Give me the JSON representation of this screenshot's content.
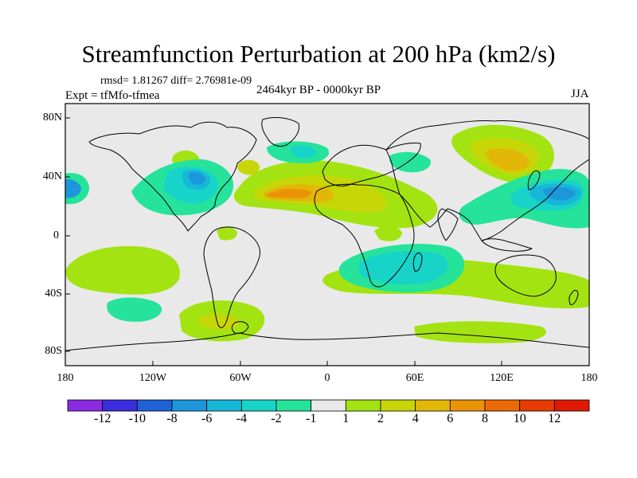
{
  "title": "Streamfunction Perturbation at 200 hPa (km2/s)",
  "stats": "rmsd= 1.81267 diff= 2.76981e-09",
  "experiment": "Expt = tfMfo-tfmea",
  "period": "2464kyr BP - 0000kyr BP",
  "season": "JJA",
  "axes": {
    "y_ticks": [
      "80N",
      "40N",
      "0",
      "40S",
      "80S"
    ],
    "x_ticks": [
      "180",
      "120W",
      "60W",
      "0",
      "60E",
      "120E",
      "180"
    ]
  },
  "colorbar": {
    "labels": [
      "-12",
      "-10",
      "-8",
      "-6",
      "-4",
      "-2",
      "-1",
      "1",
      "2",
      "4",
      "6",
      "8",
      "10",
      "12"
    ],
    "colors": [
      "#8a2be2",
      "#3a2de0",
      "#1f62d8",
      "#1d97dc",
      "#17b7d8",
      "#18d4c8",
      "#25e39a",
      "#e9e9e9",
      "#a3e312",
      "#c7d607",
      "#e2b707",
      "#eb9306",
      "#ec6a05",
      "#e83a03",
      "#e01a02"
    ]
  },
  "palette": {
    "background": "#e9e9e9",
    "coast": "#000000"
  }
}
